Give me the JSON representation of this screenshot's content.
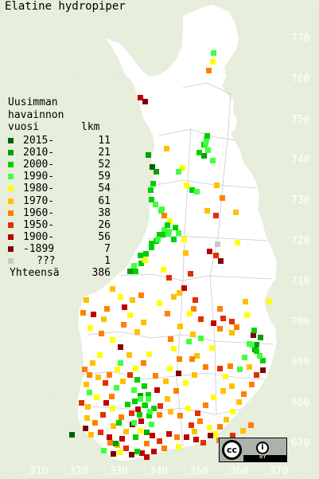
{
  "title": "Elatine hydropiper",
  "legend": {
    "header_line1": "Uusimman",
    "header_line2": "havainnon",
    "header_year": "vuosi",
    "header_count": "lkm",
    "rows": [
      {
        "label": "2015-",
        "count": "11",
        "color": "#006400"
      },
      {
        "label": "2010-",
        "count": "21",
        "color": "#00a000"
      },
      {
        "label": "2000-",
        "count": "52",
        "color": "#00d000"
      },
      {
        "label": "1990-",
        "count": "59",
        "color": "#40ff40"
      },
      {
        "label": "1980-",
        "count": "54",
        "color": "#ffff00"
      },
      {
        "label": "1970-",
        "count": "61",
        "color": "#ffc000"
      },
      {
        "label": "1960-",
        "count": "38",
        "color": "#ff8000"
      },
      {
        "label": "1950-",
        "count": "26",
        "color": "#e03000"
      },
      {
        "label": "1900-",
        "count": "56",
        "color": "#c00000"
      },
      {
        "label": "-1899",
        "count": "7",
        "color": "#800000"
      },
      {
        "label": "???",
        "count": "1",
        "color": "#c8c8c8"
      }
    ],
    "total_label": "Yhteensä",
    "total_count": "386"
  },
  "y_axis": [
    "770",
    "760",
    "750",
    "740",
    "730",
    "720",
    "710",
    "700",
    "690",
    "680",
    "670"
  ],
  "x_axis": [
    "310",
    "320",
    "330",
    "340",
    "350",
    "360",
    "370"
  ],
  "license": {
    "cc": "cc",
    "by": "BY"
  },
  "colors": {
    "background": "#e7eedb",
    "land": "#ffffff",
    "grid": "#e0e0e0",
    "borders": "#c8c8c8"
  }
}
